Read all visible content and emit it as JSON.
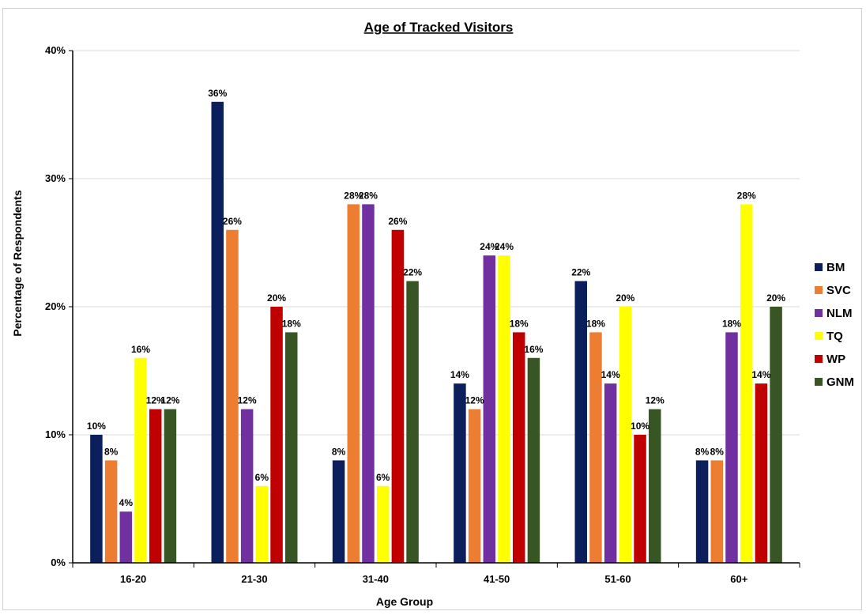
{
  "chart_data": {
    "type": "bar",
    "title": "Age of Tracked Visitors",
    "xlabel": "Age Group",
    "ylabel": "Percentage of Respondents",
    "categories": [
      "16-20",
      "21-30",
      "31-40",
      "41-50",
      "51-60",
      "60+"
    ],
    "ylim": [
      0,
      40
    ],
    "yticks": [
      0,
      10,
      20,
      30,
      40
    ],
    "ytick_labels": [
      "0%",
      "10%",
      "20%",
      "30%",
      "40%"
    ],
    "value_suffix": "%",
    "grid": true,
    "legend_position": "right",
    "series": [
      {
        "name": "BM",
        "color": "#0b1f5c",
        "values": [
          10,
          36,
          8,
          14,
          22,
          8
        ]
      },
      {
        "name": "SVC",
        "color": "#ed7d31",
        "values": [
          8,
          26,
          28,
          12,
          18,
          8
        ]
      },
      {
        "name": "NLM",
        "color": "#7030a0",
        "values": [
          4,
          12,
          28,
          24,
          14,
          18
        ]
      },
      {
        "name": "TQ",
        "color": "#ffff00",
        "values": [
          16,
          6,
          6,
          24,
          20,
          28
        ]
      },
      {
        "name": "WP",
        "color": "#c00000",
        "values": [
          12,
          20,
          26,
          18,
          10,
          14
        ]
      },
      {
        "name": "GNM",
        "color": "#375623",
        "values": [
          12,
          18,
          22,
          16,
          12,
          20
        ]
      }
    ]
  }
}
